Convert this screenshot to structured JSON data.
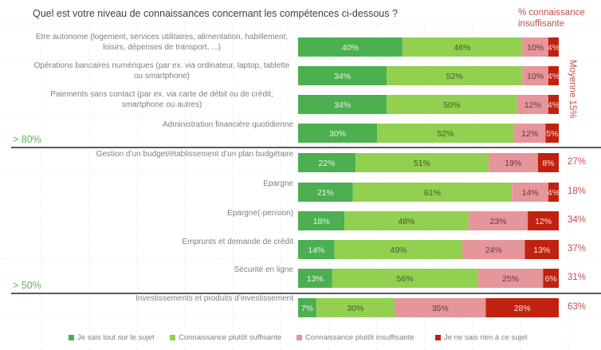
{
  "chart_data": {
    "type": "bar",
    "orientation": "horizontal",
    "stacked": true,
    "title": "Quel est votre niveau de connaissances concernant les compétences ci-dessous ?",
    "insufficient_header": "% connaissance insuffisante",
    "average_label": "Moyenne 15%",
    "xlim": [
      0,
      100
    ],
    "grid": false,
    "legend_position": "bottom",
    "series": [
      {
        "name": "Je sais tout sur le sujet",
        "color": "#4caf50",
        "text_color": "#e8f5e9"
      },
      {
        "name": "Connaissance plutôt suffisante",
        "color": "#92d050",
        "text_color": "#3f5a2a"
      },
      {
        "name": "Connaissance plutôt insuffisante",
        "color": "#e6959a",
        "text_color": "#5a3c40"
      },
      {
        "name": "Je ne sais rien à ce sujet",
        "color": "#c0220f",
        "text_color": "#fbe3e0"
      }
    ],
    "categories": [
      {
        "label": "Etre autonome (logement, services utilitaires, alimentation, habillement, loisirs, dépenses de transport, ...)",
        "lines": [
          "Etre autonome (logement, services utilitaires, alimentation, habillement,",
          "loisirs, dépenses de transport, ...)"
        ],
        "values": [
          40,
          46,
          10,
          4
        ],
        "insufficient": null
      },
      {
        "label": "Opérations bancaires numériques (par ex. via ordinateur, laptop, tablette ou smartphone)",
        "lines": [
          "Opérations bancaires numériques (par ex. via ordinateur, laptop, tablette",
          "ou smartphone)"
        ],
        "values": [
          34,
          52,
          10,
          4
        ],
        "insufficient": null
      },
      {
        "label": "Paiements sans contact (par ex. via carte de débit ou de crédit, smartphone ou autres)",
        "lines": [
          "Paiements sans contact (par ex. via carte de débit ou de crédit,",
          "smartphone ou autres)"
        ],
        "values": [
          34,
          50,
          12,
          4
        ],
        "insufficient": null
      },
      {
        "label": "Administration financière quotidienne",
        "lines": [
          "Administration financière quotidienne"
        ],
        "values": [
          30,
          52,
          12,
          5
        ],
        "insufficient": null
      },
      {
        "label": "Gestion d'un budget/établissement d'un plan budgétaire",
        "lines": [
          "Gestion d’un budget/établissement d’un plan budgétaire"
        ],
        "values": [
          22,
          51,
          19,
          8
        ],
        "insufficient": "27%"
      },
      {
        "label": "Epargne",
        "lines": [
          "Epargne"
        ],
        "values": [
          21,
          61,
          14,
          4
        ],
        "insufficient": "18%"
      },
      {
        "label": "Epargne(-pension)",
        "lines": [
          "Epargne(-pension)"
        ],
        "values": [
          18,
          48,
          23,
          12
        ],
        "insufficient": "34%"
      },
      {
        "label": "Emprunts et demande de crédit",
        "lines": [
          "Emprunts et demande de crédit"
        ],
        "values": [
          14,
          49,
          24,
          13
        ],
        "insufficient": "37%"
      },
      {
        "label": "Sécurité en ligne",
        "lines": [
          "Sécurité en ligne"
        ],
        "values": [
          13,
          56,
          25,
          6
        ],
        "insufficient": "31%"
      },
      {
        "label": "Investissements et produits d'investissement",
        "lines": [
          "Investissements et produits d’investissement"
        ],
        "values": [
          7,
          30,
          35,
          28
        ],
        "insufficient": "63%"
      }
    ],
    "thresholds": [
      {
        "label": "> 80%",
        "after_row": 3
      },
      {
        "label": "> 50%",
        "after_row": 8
      }
    ]
  }
}
